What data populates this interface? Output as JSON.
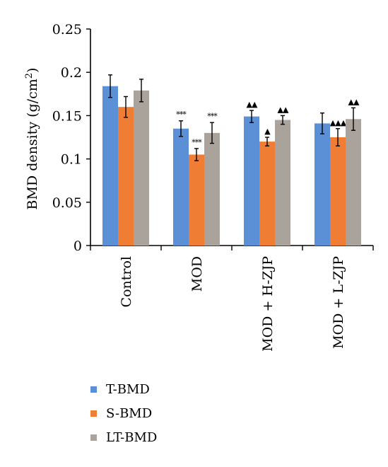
{
  "chart_data": {
    "type": "bar",
    "ylabel": "BMD density (g/cm",
    "ylabel_sup": "2",
    "ylabel_close": ")",
    "ylim": [
      0,
      0.25
    ],
    "ytick_values": [
      0,
      0.05,
      0.1,
      0.15,
      0.2,
      0.25
    ],
    "ytick_labels": [
      "0",
      "0.05",
      "0.1",
      "0.15",
      "0.2",
      "0.25"
    ],
    "categories": [
      "Control",
      "MOD",
      "MOD + H-ZJP",
      "MOD + L-ZJP"
    ],
    "series": [
      {
        "name": "T-BMD",
        "color": "#5b8fd6",
        "values": [
          0.184,
          0.135,
          0.149,
          0.141
        ],
        "errors": [
          0.013,
          0.009,
          0.007,
          0.012
        ],
        "annotations": [
          "",
          "***",
          "▲▲",
          ""
        ]
      },
      {
        "name": "S-BMD",
        "color": "#ef7d33",
        "values": [
          0.16,
          0.105,
          0.12,
          0.125
        ],
        "errors": [
          0.012,
          0.007,
          0.005,
          0.01
        ],
        "annotations": [
          "",
          "***",
          "▲",
          "▲▲▲"
        ]
      },
      {
        "name": "LT-BMD",
        "color": "#aaa39c",
        "values": [
          0.179,
          0.13,
          0.145,
          0.146
        ],
        "errors": [
          0.013,
          0.012,
          0.005,
          0.013
        ],
        "annotations": [
          "",
          "***",
          "▲▲",
          "▲▲"
        ]
      }
    ],
    "legend_position": "bottom-left",
    "grid": false
  }
}
